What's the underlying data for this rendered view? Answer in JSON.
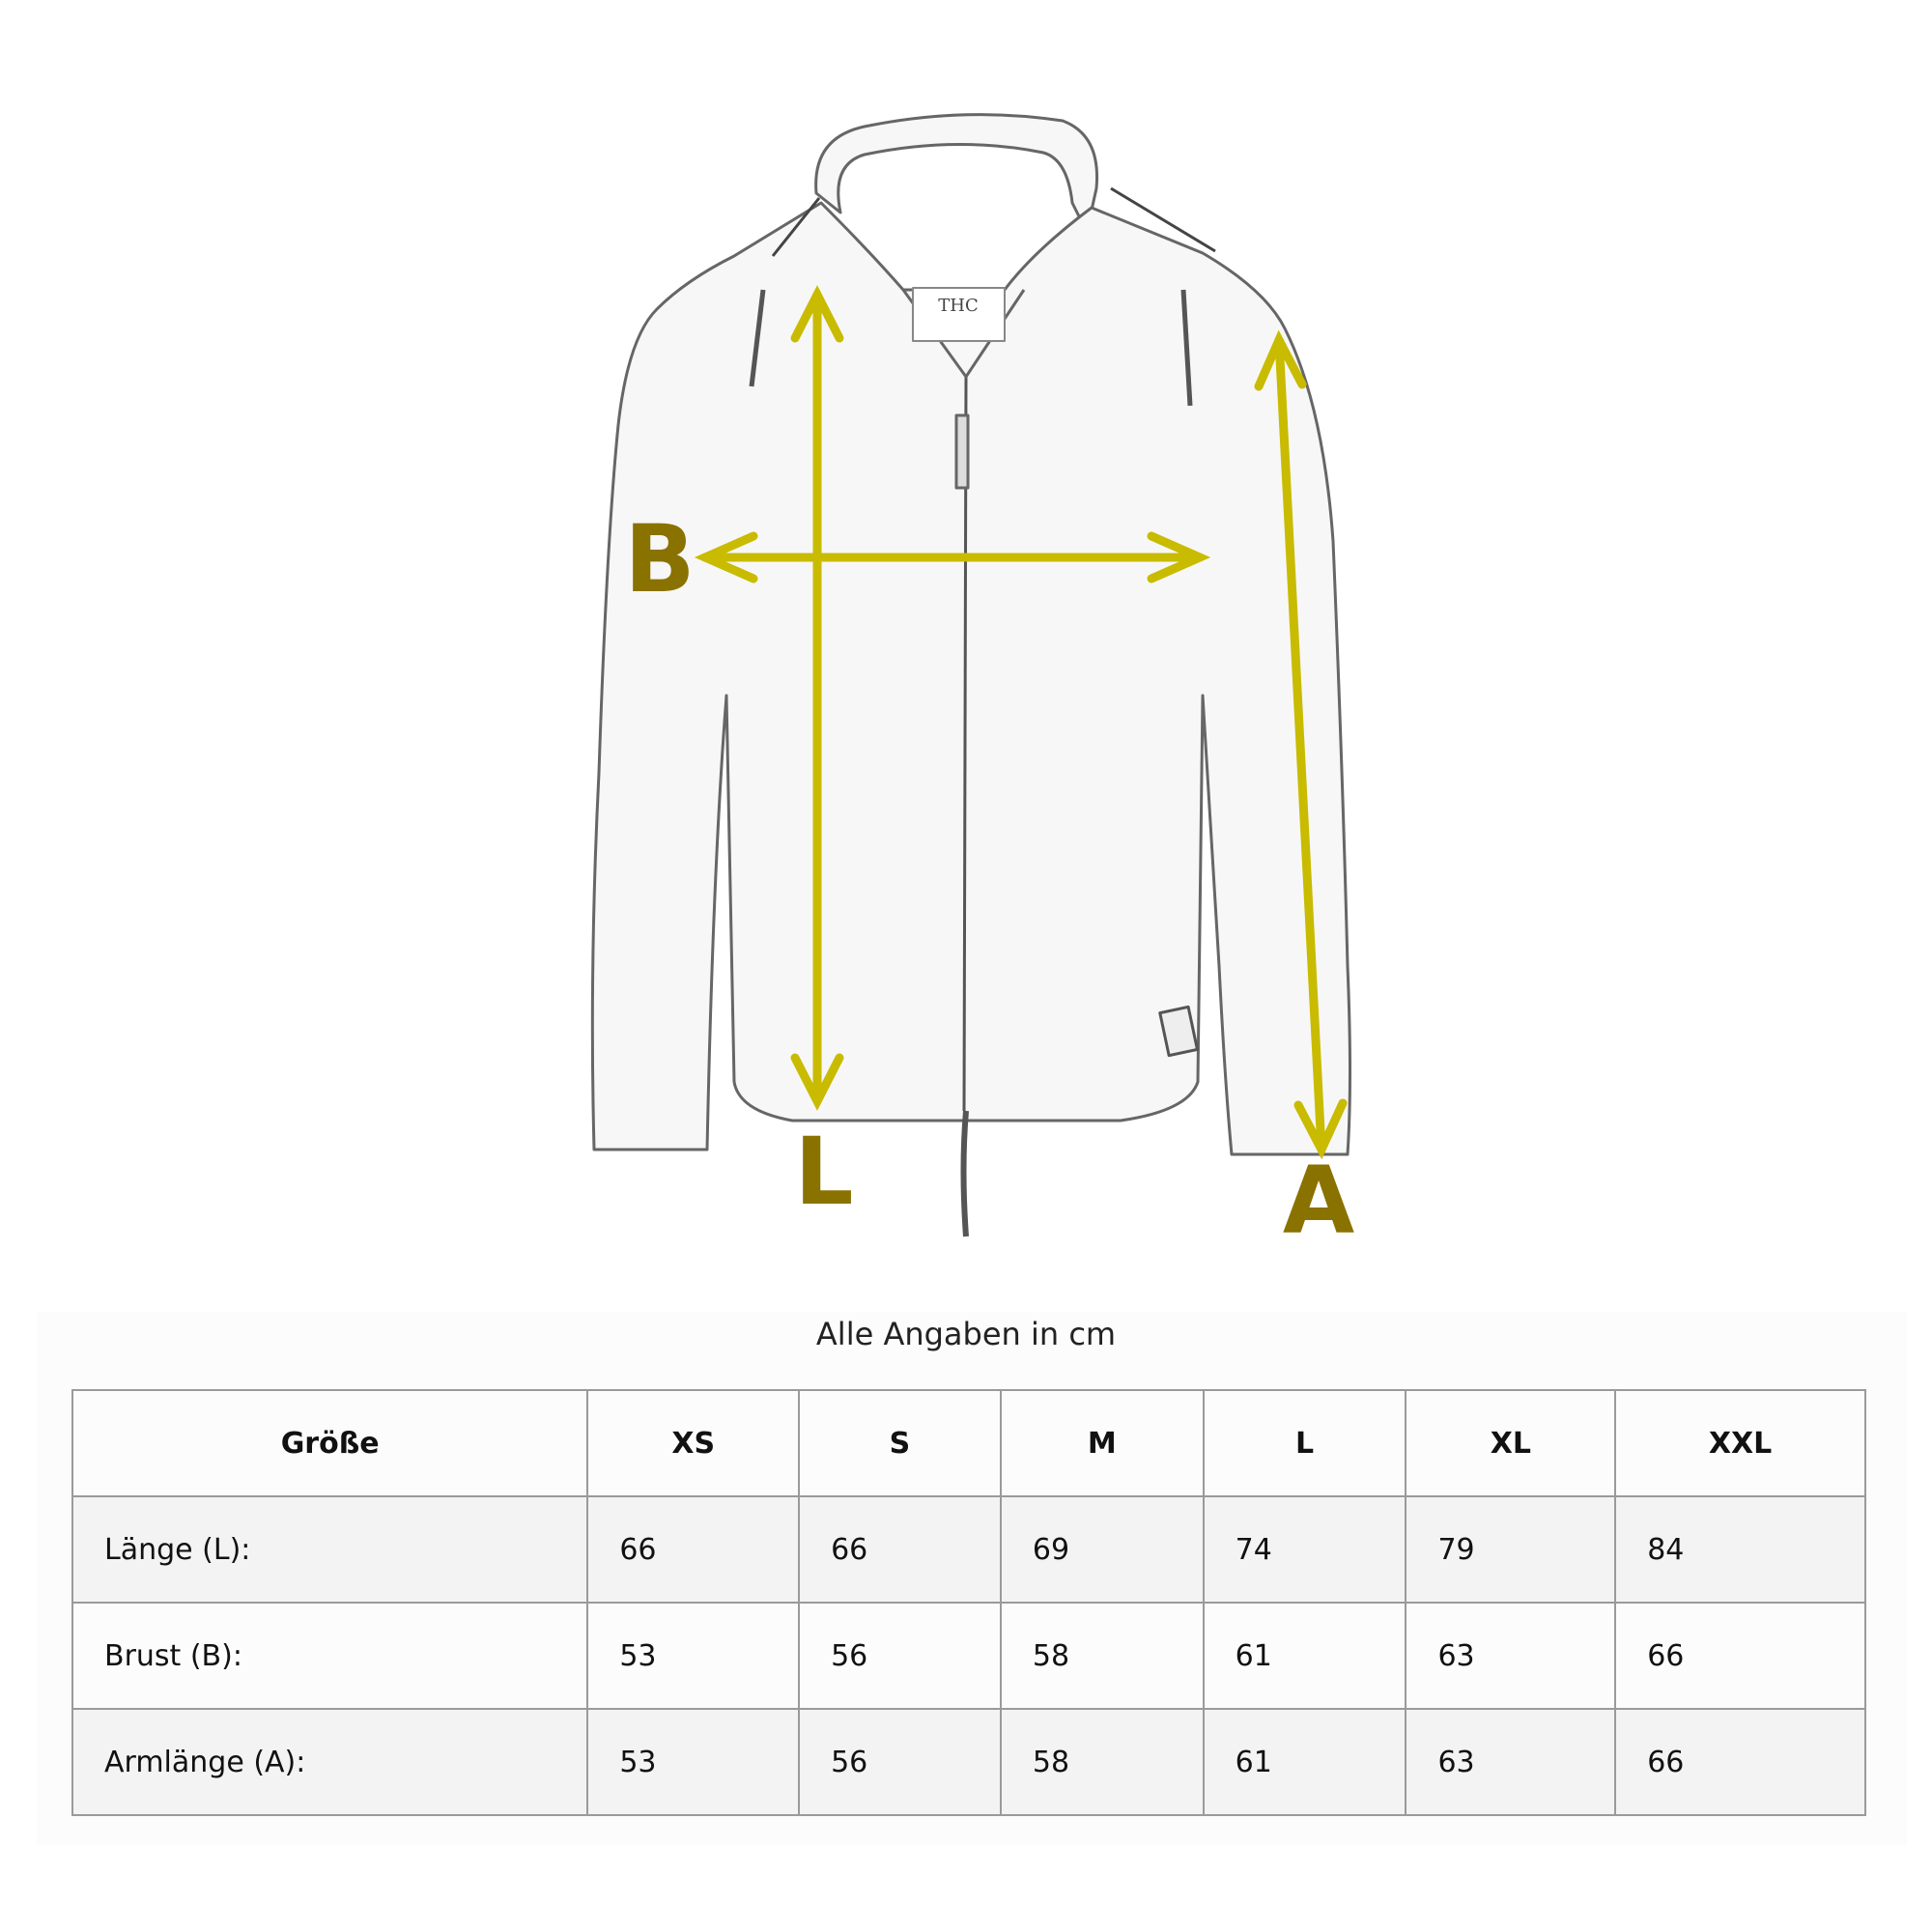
{
  "illustration": {
    "labels": {
      "length": "L",
      "chest": "B",
      "arm": "A"
    },
    "arrow_color": "#c8bb00",
    "label_color": "#8a7200",
    "tag_text": "THC"
  },
  "caption": "Alle Angaben in cm",
  "table": {
    "headers": [
      "Größe",
      "XS",
      "S",
      "M",
      "L",
      "XL",
      "XXL"
    ],
    "rows": [
      {
        "label": "Länge (L):",
        "values": [
          "66",
          "66",
          "69",
          "74",
          "79",
          "84"
        ]
      },
      {
        "label": "Brust (B):",
        "values": [
          "53",
          "56",
          "58",
          "61",
          "63",
          "66"
        ]
      },
      {
        "label": "Armlänge (A):",
        "values": [
          "53",
          "56",
          "58",
          "61",
          "63",
          "66"
        ]
      }
    ]
  }
}
